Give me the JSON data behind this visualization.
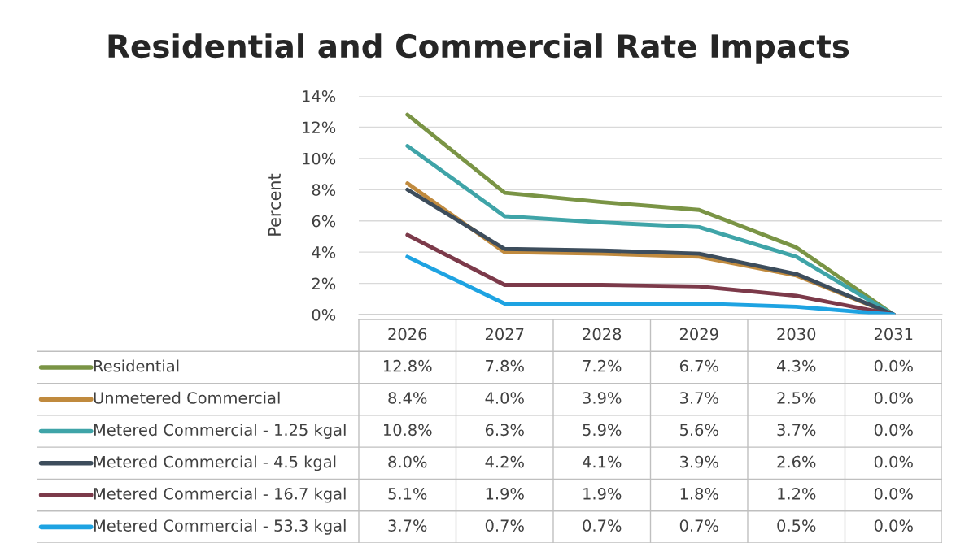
{
  "chart_data": {
    "type": "line",
    "title": "Residential and Commercial Rate Impacts",
    "ylabel": "Percent",
    "categories": [
      "2026",
      "2027",
      "2028",
      "2029",
      "2030",
      "2031"
    ],
    "series": [
      {
        "name": "Residential",
        "color": "#7a9445",
        "values": [
          12.8,
          7.8,
          7.2,
          6.7,
          4.3,
          0.0
        ],
        "value_labels": [
          "12.8%",
          "7.8%",
          "7.2%",
          "6.7%",
          "4.3%",
          "0.0%"
        ]
      },
      {
        "name": "Unmetered Commercial",
        "color": "#c08a3e",
        "values": [
          8.4,
          4.0,
          3.9,
          3.7,
          2.5,
          0.0
        ],
        "value_labels": [
          "8.4%",
          "4.0%",
          "3.9%",
          "3.7%",
          "2.5%",
          "0.0%"
        ]
      },
      {
        "name": "Metered Commercial - 1.25 kgal",
        "color": "#3fa4a8",
        "values": [
          10.8,
          6.3,
          5.9,
          5.6,
          3.7,
          0.0
        ],
        "value_labels": [
          "10.8%",
          "6.3%",
          "5.9%",
          "5.6%",
          "3.7%",
          "0.0%"
        ]
      },
      {
        "name": "Metered Commercial - 4.5 kgal",
        "color": "#3d4d5c",
        "values": [
          8.0,
          4.2,
          4.1,
          3.9,
          2.6,
          0.0
        ],
        "value_labels": [
          "8.0%",
          "4.2%",
          "4.1%",
          "3.9%",
          "2.6%",
          "0.0%"
        ]
      },
      {
        "name": "Metered Commercial - 16.7 kgal",
        "color": "#7c3a4a",
        "values": [
          5.1,
          1.9,
          1.9,
          1.8,
          1.2,
          0.0
        ],
        "value_labels": [
          "5.1%",
          "1.9%",
          "1.9%",
          "1.8%",
          "1.2%",
          "0.0%"
        ]
      },
      {
        "name": "Metered Commercial - 53.3 kgal",
        "color": "#1ea3e2",
        "values": [
          3.7,
          0.7,
          0.7,
          0.7,
          0.5,
          0.0
        ],
        "value_labels": [
          "3.7%",
          "0.7%",
          "0.7%",
          "0.7%",
          "0.5%",
          "0.0%"
        ]
      }
    ],
    "ylim": [
      0,
      14
    ],
    "yticks": [
      {
        "value": 0,
        "label": "0%"
      },
      {
        "value": 2,
        "label": "2%"
      },
      {
        "value": 4,
        "label": "4%"
      },
      {
        "value": 6,
        "label": "6%"
      },
      {
        "value": 8,
        "label": "8%"
      },
      {
        "value": 10,
        "label": "10%"
      },
      {
        "value": 12,
        "label": "12%"
      },
      {
        "value": 14,
        "label": "14%"
      }
    ],
    "grid": "y",
    "legend": "bottom",
    "marker": "none",
    "line_style": "solid"
  }
}
